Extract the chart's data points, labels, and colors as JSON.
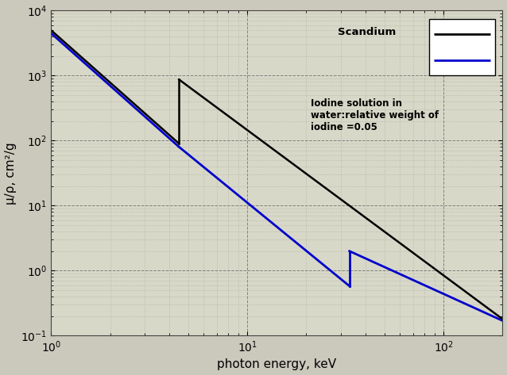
{
  "xlabel": "photon energy, keV",
  "ylabel": "μ/ρ, cm²/g",
  "xlim": [
    1,
    200
  ],
  "ylim": [
    0.1,
    10000
  ],
  "background_color": "#cbc8bc",
  "plot_bg_color": "#d8d8c8",
  "scandium_color": "#000000",
  "iodine_color": "#0000cc",
  "legend_scandium": "Scandium",
  "legend_iodine": "Iodine solution in\nwater:relative weight of\niodine =0.05",
  "sc_edge_keV": 4.492,
  "iod_edge_keV": 33.17,
  "sc_y_at_1keV": 5000,
  "sc_y_just_below_edge": 90,
  "sc_y_just_above_edge": 870,
  "sc_y_at_200keV": 0.18,
  "iod_y_at_1keV": 4500,
  "iod_y_just_below_edge": 0.58,
  "iod_y_just_above_edge": 2.0,
  "iod_y_at_200keV": 0.17,
  "figsize": [
    6.38,
    4.73
  ],
  "dpi": 100
}
